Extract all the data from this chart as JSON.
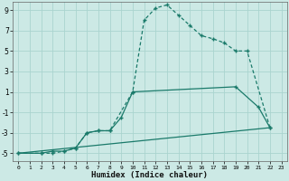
{
  "title": "",
  "xlabel": "Humidex (Indice chaleur)",
  "ylabel": "",
  "xlim": [
    -0.5,
    23.5
  ],
  "ylim": [
    -5.8,
    9.8
  ],
  "xticks": [
    0,
    1,
    2,
    3,
    4,
    5,
    6,
    7,
    8,
    9,
    10,
    11,
    12,
    13,
    14,
    15,
    16,
    17,
    18,
    19,
    20,
    21,
    22,
    23
  ],
  "yticks": [
    -5,
    -3,
    -1,
    1,
    3,
    5,
    7,
    9
  ],
  "bg_color": "#cce9e5",
  "grid_color": "#aad4cf",
  "line_color": "#1a7a6a",
  "line1_x": [
    0,
    2,
    3,
    4,
    5,
    6,
    7,
    8,
    10,
    11,
    12,
    13,
    14,
    15,
    16,
    17,
    18,
    19,
    20,
    22
  ],
  "line1_y": [
    -5,
    -5,
    -5,
    -4.8,
    -4.5,
    -3.0,
    -2.8,
    -2.8,
    1.0,
    8.0,
    9.2,
    9.5,
    8.5,
    7.5,
    6.5,
    6.2,
    5.8,
    5.0,
    5.0,
    -2.5
  ],
  "line2_x": [
    0,
    2,
    3,
    4,
    5,
    6,
    7,
    8,
    9,
    10,
    19,
    21,
    22
  ],
  "line2_y": [
    -5,
    -5,
    -4.8,
    -4.8,
    -4.5,
    -3.0,
    -2.8,
    -2.8,
    -1.5,
    1.0,
    1.5,
    -0.5,
    -2.5
  ],
  "line3_x": [
    0,
    22
  ],
  "line3_y": [
    -5,
    -2.5
  ],
  "figsize": [
    3.2,
    2.0
  ],
  "dpi": 100
}
